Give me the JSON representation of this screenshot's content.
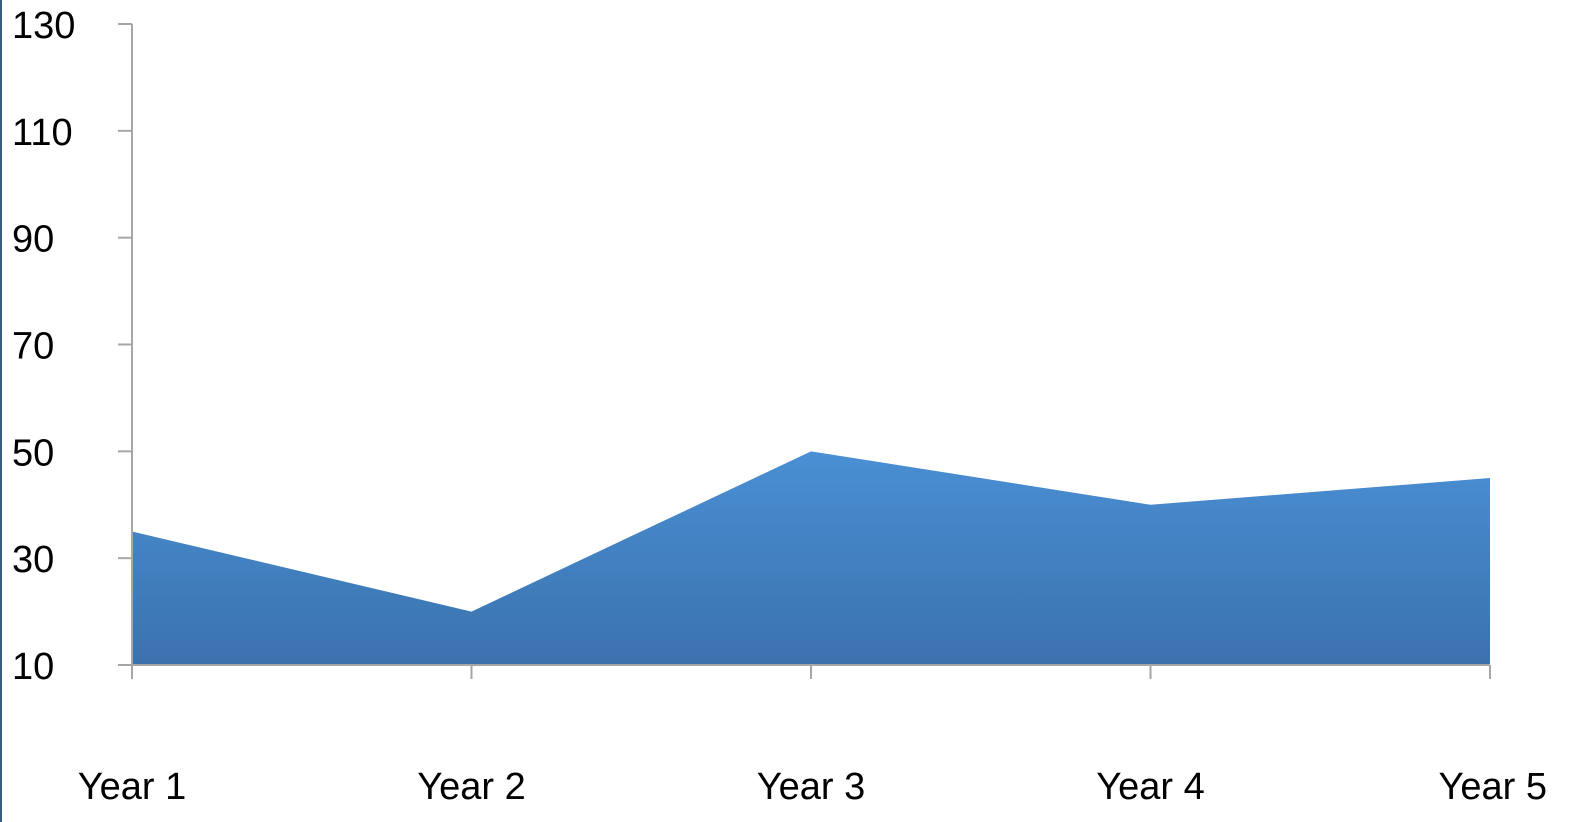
{
  "chart_data": {
    "type": "area",
    "categories": [
      "Year 1",
      "Year 2",
      "Year 3",
      "Year 4",
      "Year 5"
    ],
    "values": [
      35,
      20,
      50,
      40,
      45
    ],
    "ylim": [
      10,
      130
    ],
    "yticks": [
      "10",
      "30",
      "50",
      "70",
      "90",
      "110",
      "130"
    ],
    "grid": false,
    "colors": {
      "fill_top": "#4a8fd4",
      "fill_bottom": "#3a72ad",
      "axis": "#a6a6a6",
      "frame": "#3d5a80"
    }
  }
}
